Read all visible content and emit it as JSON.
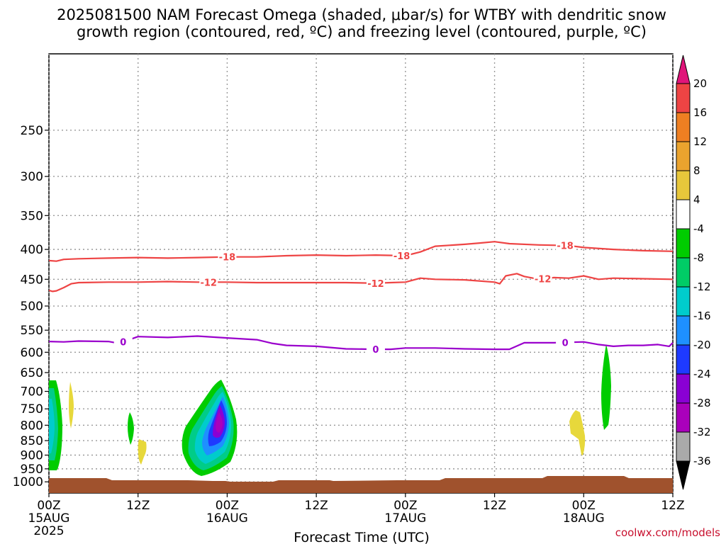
{
  "title": "2025081500 NAM Forecast Omega (shaded, μbar/s) for WTBY with dendritic snow",
  "title_line2": "growth region (contoured, red, ºC) and freezing level (contoured, purple, ºC)",
  "credit": "coolwx.com/models",
  "chart_data": {
    "type": "contour",
    "xlabel": "Forecast Time (UTC)",
    "ylabel": "",
    "x_range_hours": [
      0,
      84
    ],
    "y_axis": {
      "log": true,
      "inverted": true,
      "range_mb": [
        185,
        1045
      ]
    },
    "y_ticks": [
      250,
      300,
      350,
      400,
      450,
      500,
      550,
      600,
      650,
      700,
      750,
      800,
      850,
      900,
      950,
      1000
    ],
    "y_tick_labels": [
      "250",
      "300",
      "350",
      "400",
      "450",
      "500",
      "550",
      "600",
      "650",
      "700",
      "750",
      "800",
      "850",
      "900",
      "950",
      "1000"
    ],
    "x_ticks": [
      {
        "hour": 0,
        "line1": "00Z",
        "line2": "15AUG",
        "line3": "2025"
      },
      {
        "hour": 12,
        "line1": "12Z",
        "line2": "",
        "line3": ""
      },
      {
        "hour": 24,
        "line1": "00Z",
        "line2": "16AUG",
        "line3": ""
      },
      {
        "hour": 36,
        "line1": "12Z",
        "line2": "",
        "line3": ""
      },
      {
        "hour": 48,
        "line1": "00Z",
        "line2": "17AUG",
        "line3": ""
      },
      {
        "hour": 60,
        "line1": "12Z",
        "line2": "",
        "line3": ""
      },
      {
        "hour": 72,
        "line1": "00Z",
        "line2": "18AUG",
        "line3": ""
      },
      {
        "hour": 84,
        "line1": "12Z",
        "line2": "",
        "line3": ""
      }
    ],
    "grid": true,
    "contours": [
      {
        "level": "-18",
        "color": "#ee4444",
        "points": [
          [
            0,
            418
          ],
          [
            1,
            419
          ],
          [
            2,
            416
          ],
          [
            4,
            415
          ],
          [
            8,
            414
          ],
          [
            12,
            413
          ],
          [
            16,
            414
          ],
          [
            20,
            413
          ],
          [
            24,
            412
          ],
          [
            28,
            412
          ],
          [
            32,
            410
          ],
          [
            36,
            409
          ],
          [
            40,
            410
          ],
          [
            44,
            409
          ],
          [
            48,
            410
          ],
          [
            50,
            404
          ],
          [
            52,
            395
          ],
          [
            56,
            392
          ],
          [
            58,
            390
          ],
          [
            60,
            388
          ],
          [
            62,
            391
          ],
          [
            66,
            393
          ],
          [
            70,
            394
          ],
          [
            72,
            397
          ],
          [
            76,
            400
          ],
          [
            80,
            402
          ],
          [
            84,
            403
          ]
        ],
        "labels": [
          [
            24,
            "-18"
          ],
          [
            47.5,
            "-18"
          ],
          [
            69.5,
            "-18"
          ]
        ]
      },
      {
        "level": "-12",
        "color": "#ee4444",
        "points": [
          [
            0,
            470
          ],
          [
            0.5,
            472
          ],
          [
            1,
            471
          ],
          [
            2,
            465
          ],
          [
            3,
            458
          ],
          [
            4,
            456
          ],
          [
            8,
            455
          ],
          [
            12,
            455
          ],
          [
            16,
            454
          ],
          [
            20,
            455
          ],
          [
            24,
            455
          ],
          [
            28,
            456
          ],
          [
            32,
            456
          ],
          [
            36,
            456
          ],
          [
            40,
            456
          ],
          [
            44,
            457
          ],
          [
            46,
            456
          ],
          [
            48,
            455
          ],
          [
            50,
            448
          ],
          [
            52,
            450
          ],
          [
            56,
            451
          ],
          [
            60,
            455
          ],
          [
            60.7,
            458
          ],
          [
            61.5,
            444
          ],
          [
            63,
            440
          ],
          [
            64,
            445
          ],
          [
            66,
            450
          ],
          [
            68,
            447
          ],
          [
            70,
            448
          ],
          [
            72,
            444
          ],
          [
            74,
            450
          ],
          [
            76,
            448
          ],
          [
            80,
            449
          ],
          [
            84,
            450
          ]
        ],
        "labels": [
          [
            21.5,
            "-12"
          ],
          [
            44,
            "-12"
          ],
          [
            66.5,
            "-12"
          ]
        ]
      },
      {
        "level": "0",
        "color": "#9a00cc",
        "points": [
          [
            0,
            575
          ],
          [
            2,
            576
          ],
          [
            4,
            574
          ],
          [
            8,
            575
          ],
          [
            9,
            578
          ],
          [
            10,
            576
          ],
          [
            12,
            564
          ],
          [
            16,
            566
          ],
          [
            20,
            563
          ],
          [
            24,
            567
          ],
          [
            28,
            571
          ],
          [
            30,
            579
          ],
          [
            32,
            584
          ],
          [
            36,
            586
          ],
          [
            40,
            592
          ],
          [
            44,
            593
          ],
          [
            46,
            593
          ],
          [
            48,
            590
          ],
          [
            52,
            590
          ],
          [
            56,
            592
          ],
          [
            60,
            593
          ],
          [
            62,
            593
          ],
          [
            64,
            578
          ],
          [
            66,
            578
          ],
          [
            68,
            578
          ],
          [
            72,
            576
          ],
          [
            74,
            582
          ],
          [
            76,
            586
          ],
          [
            78,
            584
          ],
          [
            80,
            584
          ],
          [
            82,
            582
          ],
          [
            83.5,
            586
          ],
          [
            84,
            578
          ]
        ],
        "labels": [
          [
            10,
            "0"
          ],
          [
            44,
            "0"
          ],
          [
            69.5,
            "0"
          ]
        ]
      }
    ],
    "colorbar": {
      "label_values": [
        "20",
        "16",
        "12",
        "8",
        "4",
        "-4",
        "-8",
        "-12",
        "-16",
        "-20",
        "-24",
        "-28",
        "-32",
        "-36"
      ],
      "colors": [
        "#ee4444",
        "#ee7f22",
        "#eaa32e",
        "#e7c73b",
        "#ffffff",
        "#00cc00",
        "#00cc66",
        "#00cccc",
        "#1e90ff",
        "#1e3aff",
        "#8a00d4",
        "#aa00bb",
        "#aaaaaa"
      ],
      "top_color": "#e0157a",
      "bottom_color": "#000000"
    },
    "shaded_regions": [
      {
        "name": "omega-lowlevel-0z",
        "range": "-4 to -16",
        "hour_center": 0.6,
        "mb_top": 695,
        "mb_bottom": 960
      },
      {
        "name": "omega-12z-yellow",
        "range": "4 to 8",
        "hour_center": 12.4,
        "mb_top": 860,
        "mb_bottom": 935
      },
      {
        "name": "omega-16aug-core",
        "range": "-4 to -28",
        "hour_center": 22.3,
        "mb_top": 695,
        "mb_bottom": 985
      },
      {
        "name": "omega-18aug-yellow",
        "range": "4 to 8",
        "hour_center": 71.5,
        "mb_top": 780,
        "mb_bottom": 910
      },
      {
        "name": "omega-18aug-green",
        "range": "-4 to -8",
        "hour_center": 74.8,
        "mb_top": 615,
        "mb_bottom": 830
      }
    ],
    "terrain": {
      "color": "#a0522d",
      "surface_pressure_mb": 992
    }
  }
}
